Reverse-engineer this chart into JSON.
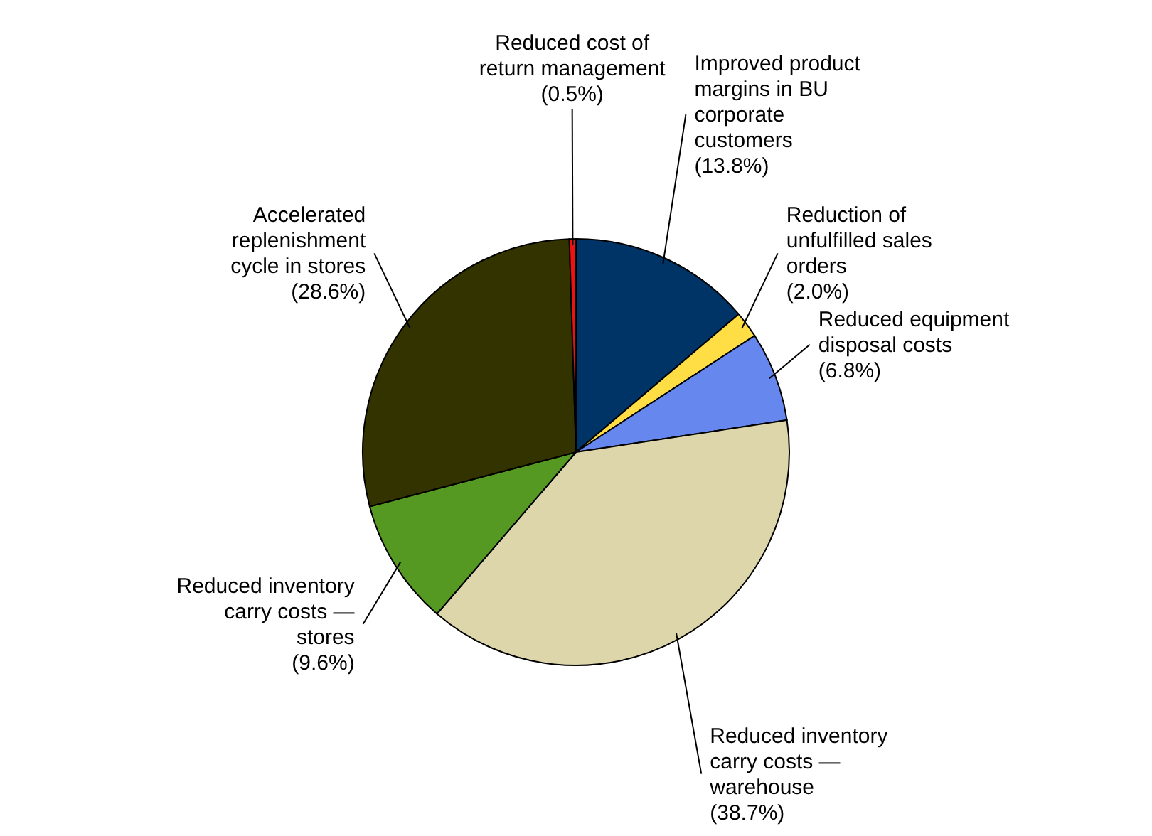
{
  "chart_data": {
    "type": "pie",
    "categories": [
      "Improved product margins in BU corporate customers",
      "Reduction of unfulfilled sales orders",
      "Reduced equipment disposal costs",
      "Reduced inventory carry costs — warehouse",
      "Reduced inventory carry costs — stores",
      "Accelerated replenishment cycle in stores",
      "Reduced cost of return management"
    ],
    "values": [
      13.8,
      2.0,
      6.8,
      38.7,
      9.6,
      28.6,
      0.5
    ],
    "value_labels": [
      "(13.8%)",
      "(2.0%)",
      "(6.8%)",
      "(38.7%)",
      "(9.6%)",
      "(28.6%)",
      "(0.5%)"
    ],
    "colors": [
      "#003366",
      "#ffdd44",
      "#6688ee",
      "#ddd6aa",
      "#559922",
      "#333300",
      "#ee1111"
    ],
    "legend": false
  }
}
